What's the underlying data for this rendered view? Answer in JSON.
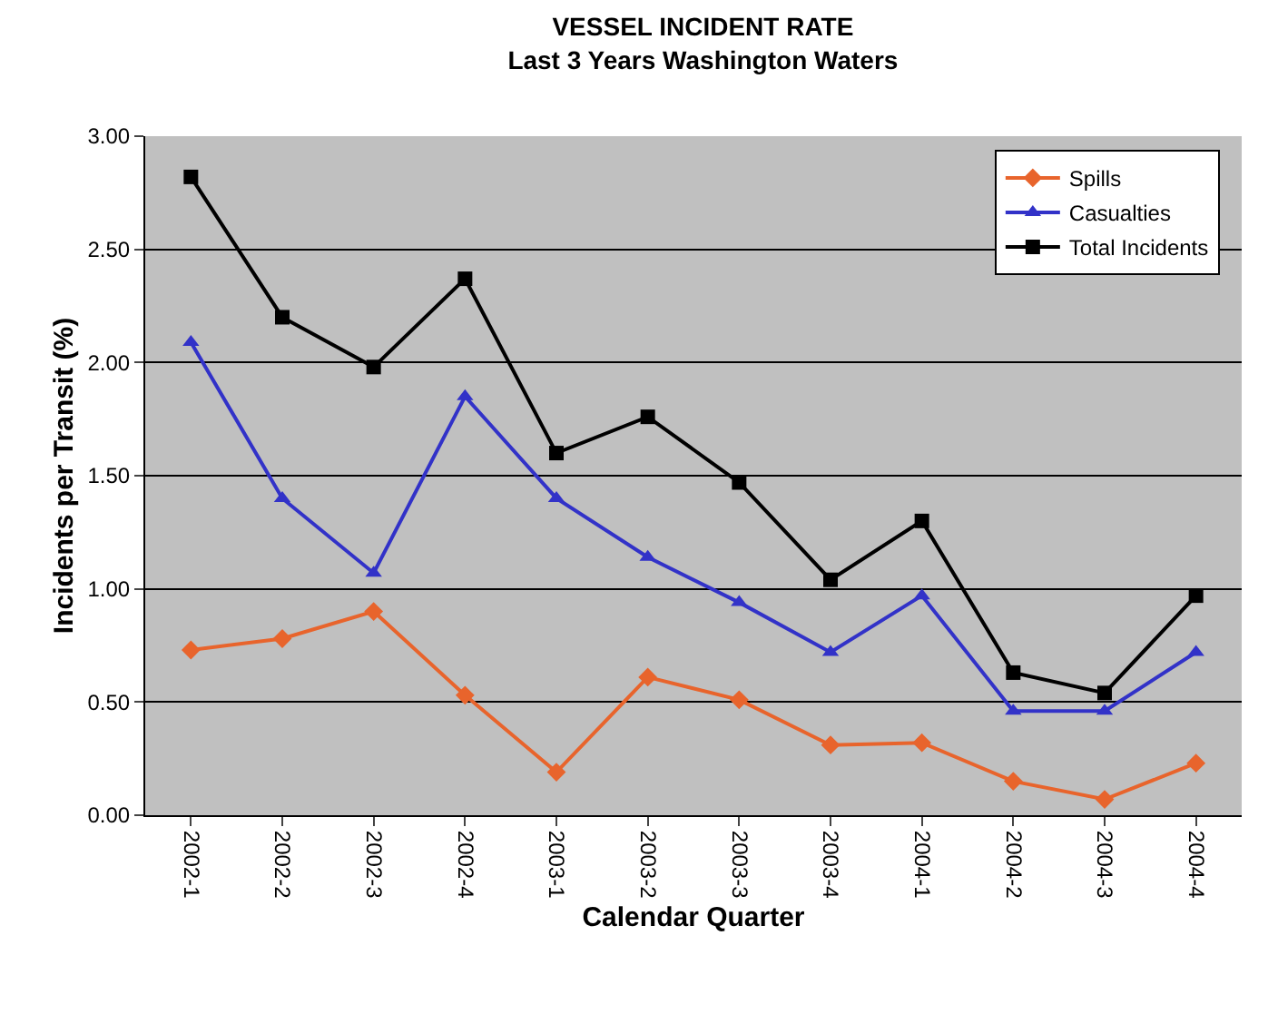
{
  "chart_data": {
    "type": "line",
    "title": "VESSEL INCIDENT RATE",
    "subtitle": "Last 3 Years Washington Waters",
    "xlabel": "Calendar Quarter",
    "ylabel": "Incidents per Transit (%)",
    "categories": [
      "2002-1",
      "2002-2",
      "2002-3",
      "2002-4",
      "2003-1",
      "2003-2",
      "2003-3",
      "2003-4",
      "2004-1",
      "2004-2",
      "2004-3",
      "2004-4"
    ],
    "series": [
      {
        "name": "Spills",
        "color": "#e8642c",
        "marker": "diamond",
        "values": [
          0.73,
          0.78,
          0.9,
          0.53,
          0.19,
          0.61,
          0.51,
          0.31,
          0.32,
          0.15,
          0.07,
          0.23
        ]
      },
      {
        "name": "Casualties",
        "color": "#3232c8",
        "marker": "triangle",
        "values": [
          2.09,
          1.4,
          1.07,
          1.85,
          1.4,
          1.14,
          0.94,
          0.72,
          0.97,
          0.46,
          0.46,
          0.72
        ]
      },
      {
        "name": "Total Incidents",
        "color": "#000000",
        "marker": "square",
        "values": [
          2.82,
          2.2,
          1.98,
          2.37,
          1.6,
          1.76,
          1.47,
          1.04,
          1.3,
          0.63,
          0.54,
          0.97
        ]
      }
    ],
    "ylim": [
      0,
      3
    ],
    "yticks": [
      {
        "value": 0,
        "label": "0.00"
      },
      {
        "value": 0.5,
        "label": "0.50"
      },
      {
        "value": 1,
        "label": "1.00"
      },
      {
        "value": 1.5,
        "label": "1.50"
      },
      {
        "value": 2,
        "label": "2.00"
      },
      {
        "value": 2.5,
        "label": "2.50"
      },
      {
        "value": 3,
        "label": "3.00"
      }
    ],
    "grid": "y",
    "legend": "top right",
    "line_style": "solid"
  }
}
